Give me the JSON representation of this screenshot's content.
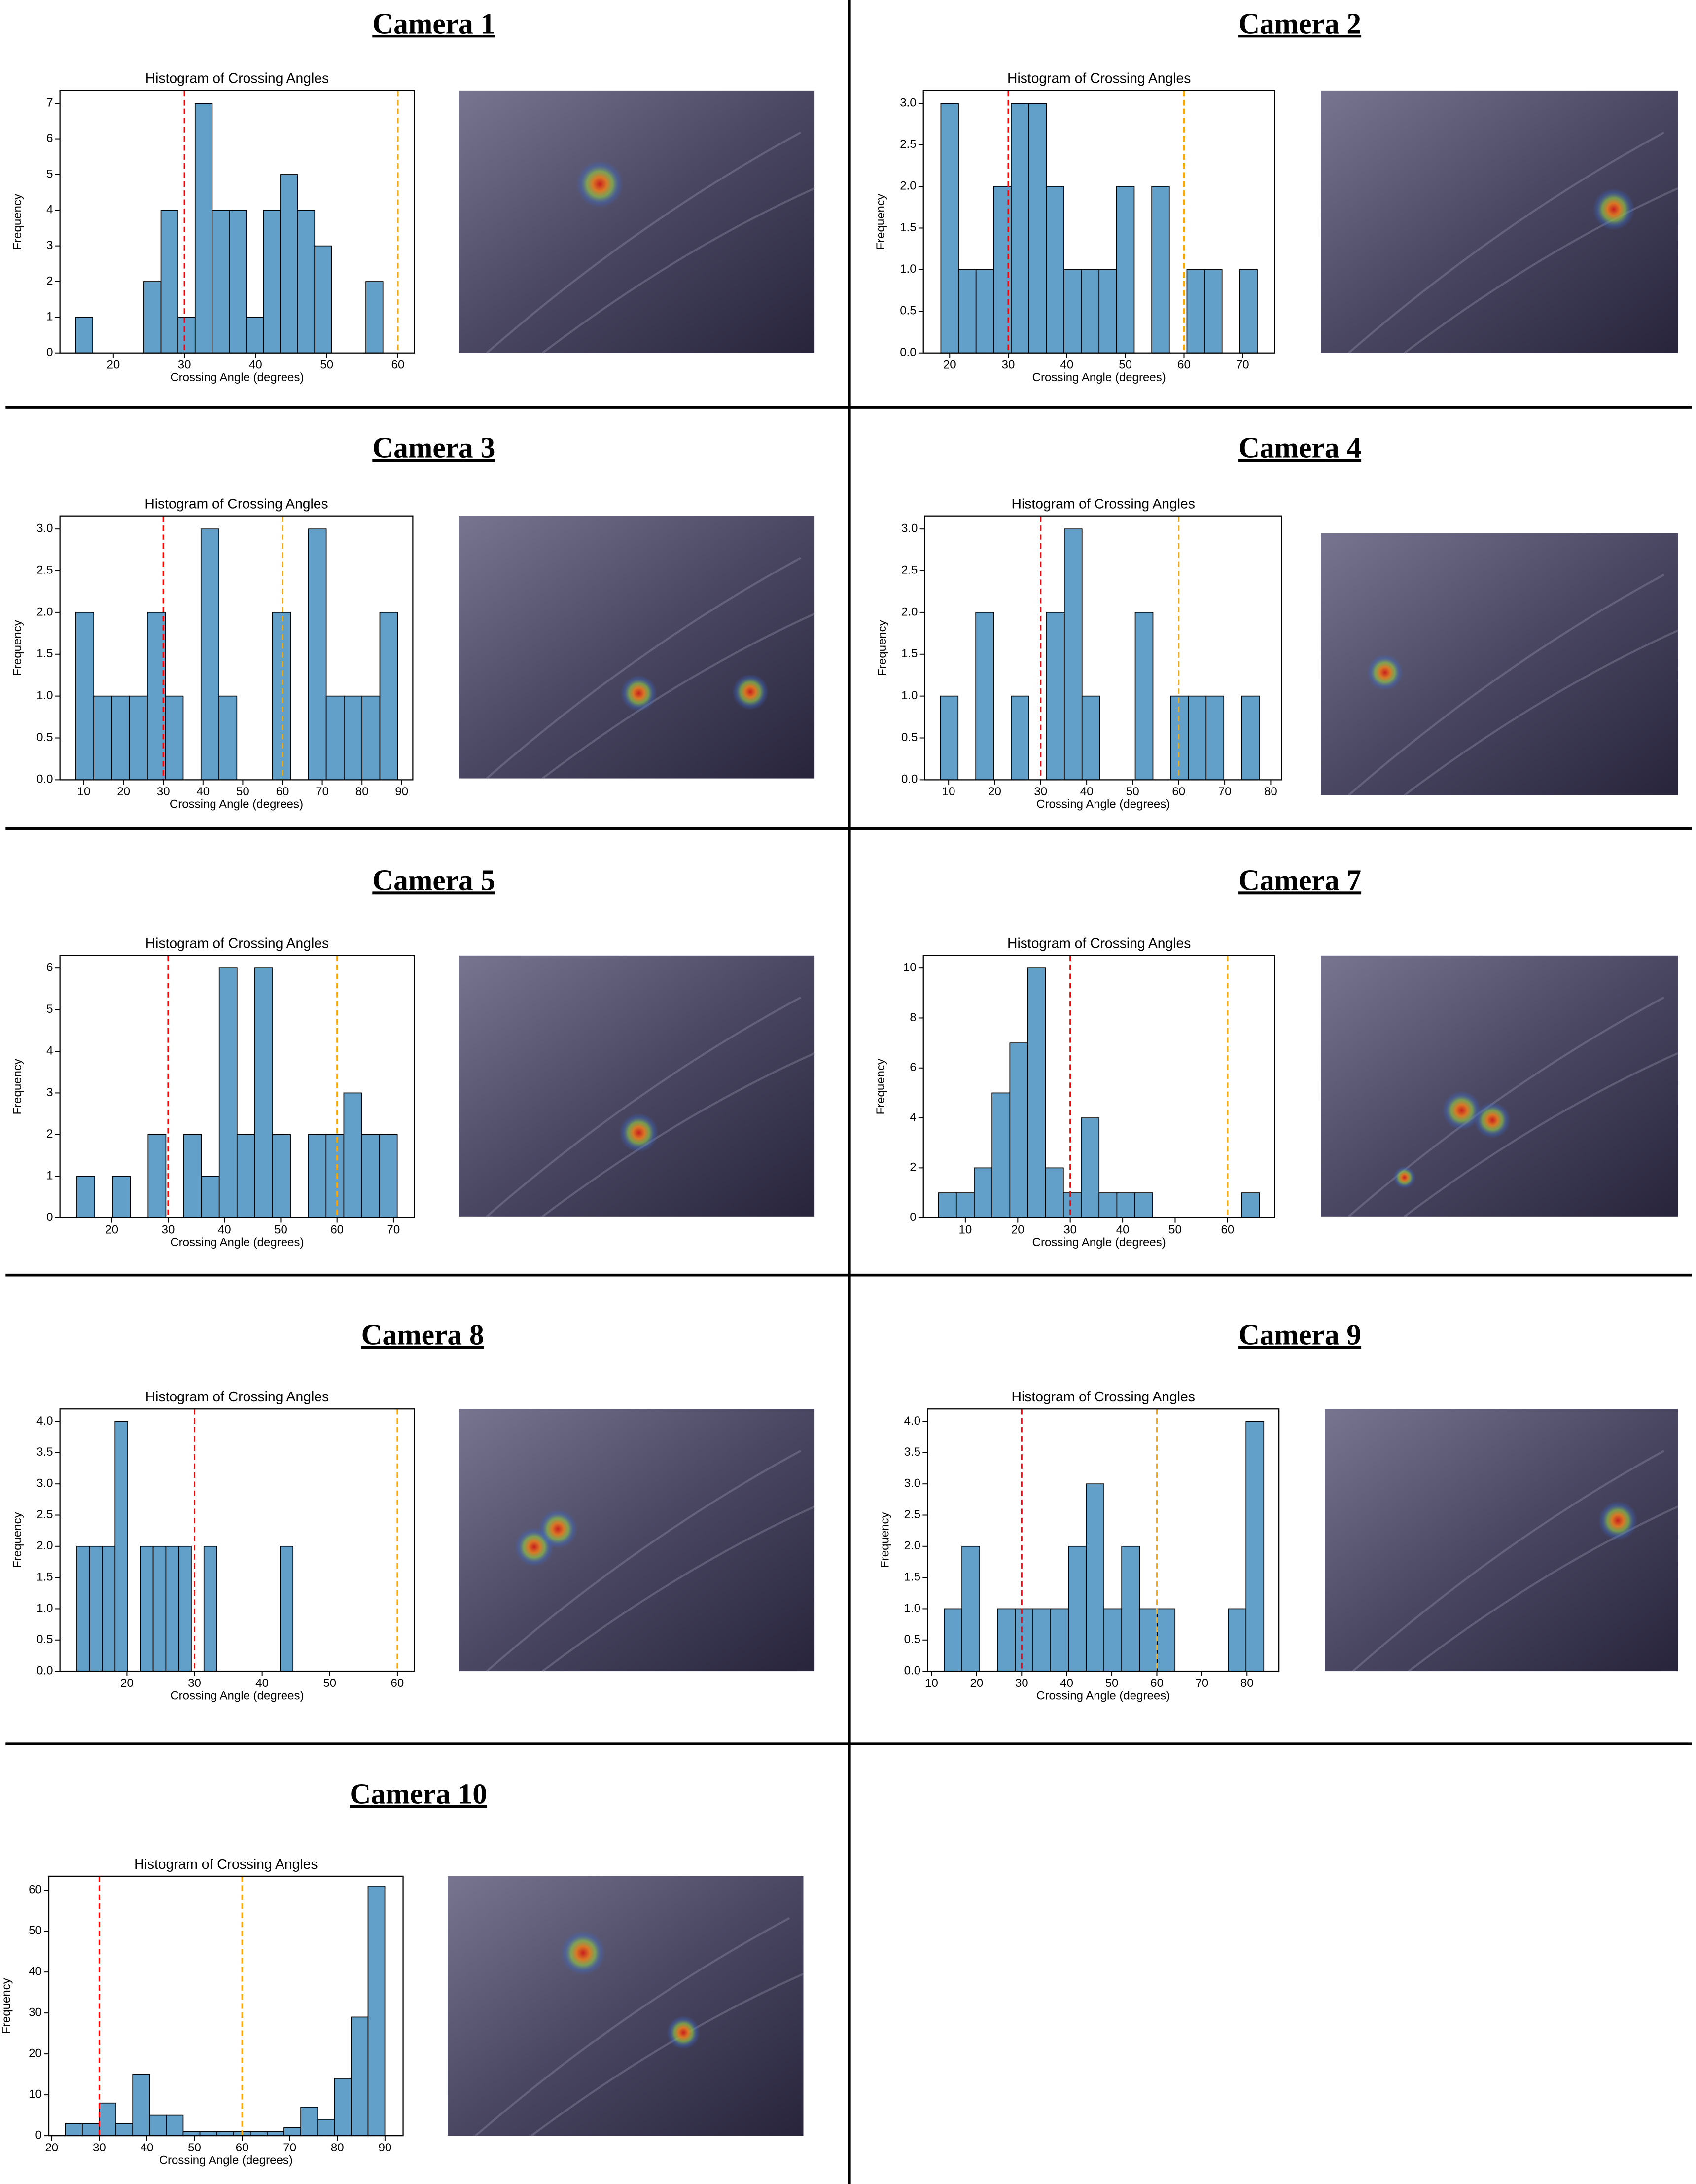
{
  "chart_data": [
    {
      "type": "histogram",
      "panel_title": "Camera 1",
      "title": "Histogram of Crossing Angles",
      "xlabel": "Crossing Angle (degrees)",
      "ylabel": "Frequency",
      "bins": [
        14.7,
        17.1,
        19.5,
        21.9,
        24.3,
        26.7,
        29.1,
        31.5,
        33.9,
        36.3,
        38.7,
        41.1,
        43.5,
        45.9,
        48.3,
        50.7,
        53.1,
        55.5,
        57.9
      ],
      "counts": [
        1,
        0,
        0,
        0,
        2,
        4,
        1,
        7,
        4,
        4,
        1,
        4,
        5,
        4,
        3,
        0,
        0,
        2
      ],
      "color": "#62a0ca",
      "edgecolor": "#000000",
      "xlim": [
        12.5,
        62.3
      ],
      "ylim": [
        0,
        7.35
      ],
      "xticks": [
        20,
        30,
        40,
        50,
        60
      ],
      "yticks": [
        0,
        1,
        2,
        3,
        4,
        5,
        6,
        7
      ],
      "vlines": [
        {
          "x": 30,
          "color": "#ff0000"
        },
        {
          "x": 60,
          "color": "#ffa500"
        }
      ]
    },
    {
      "type": "histogram",
      "panel_title": "Camera 2",
      "title": "Histogram of Crossing Angles",
      "xlabel": "Crossing Angle (degrees)",
      "ylabel": "Frequency",
      "bins": [
        18.5,
        21.5,
        24.5,
        27.5,
        30.5,
        33.5,
        36.5,
        39.5,
        42.5,
        45.5,
        48.5,
        51.5,
        54.5,
        57.5,
        60.5,
        63.5,
        66.5,
        69.5,
        72.5
      ],
      "counts": [
        3,
        1,
        1,
        2,
        3,
        3,
        2,
        1,
        1,
        1,
        2,
        0,
        2,
        0,
        1,
        1,
        0,
        1
      ],
      "color": "#62a0ca",
      "edgecolor": "#000000",
      "xlim": [
        15.5,
        75.5
      ],
      "ylim": [
        0,
        3.15
      ],
      "xticks": [
        20,
        30,
        40,
        50,
        60,
        70
      ],
      "yticks": [
        {
          "value": 0,
          "label": "0.0"
        },
        {
          "value": 0.5,
          "label": "0.5"
        },
        {
          "value": 1,
          "label": "1.0"
        },
        {
          "value": 1.5,
          "label": "1.5"
        },
        {
          "value": 2,
          "label": "2.0"
        },
        {
          "value": 2.5,
          "label": "2.5"
        },
        {
          "value": 3,
          "label": "3.0"
        }
      ],
      "vlines": [
        {
          "x": 30,
          "color": "#ff0000"
        },
        {
          "x": 60,
          "color": "#ffa500"
        }
      ]
    },
    {
      "type": "histogram",
      "panel_title": "Camera 3",
      "title": "Histogram of Crossing Angles",
      "xlabel": "Crossing Angle (degrees)",
      "ylabel": "Frequency",
      "bins": [
        8,
        12.5,
        17,
        21.5,
        26,
        30.5,
        35,
        39.5,
        44,
        48.5,
        53,
        57.5,
        62,
        66.5,
        71,
        75.5,
        80,
        84.5,
        89
      ],
      "counts": [
        2,
        1,
        1,
        1,
        2,
        1,
        0,
        3,
        1,
        0,
        0,
        2,
        0,
        3,
        1,
        1,
        1,
        2
      ],
      "color": "#62a0ca",
      "edgecolor": "#000000",
      "xlim": [
        4.0,
        92.8
      ],
      "ylim": [
        0,
        3.15
      ],
      "xticks": [
        10,
        20,
        30,
        40,
        50,
        60,
        70,
        80,
        90
      ],
      "yticks": [
        {
          "value": 0,
          "label": "0.0"
        },
        {
          "value": 0.5,
          "label": "0.5"
        },
        {
          "value": 1,
          "label": "1.0"
        },
        {
          "value": 1.5,
          "label": "1.5"
        },
        {
          "value": 2,
          "label": "2.0"
        },
        {
          "value": 2.5,
          "label": "2.5"
        },
        {
          "value": 3,
          "label": "3.0"
        }
      ],
      "vlines": [
        {
          "x": 30,
          "color": "#ff0000"
        },
        {
          "x": 60,
          "color": "#ffa500"
        }
      ]
    },
    {
      "type": "histogram",
      "panel_title": "Camera 4",
      "title": "Histogram of Crossing Angles",
      "xlabel": "Crossing Angle (degrees)",
      "ylabel": "Frequency",
      "bins": [
        8.2,
        12.05,
        15.9,
        19.75,
        23.6,
        27.45,
        31.3,
        35.15,
        39.0,
        42.85,
        46.7,
        50.55,
        54.4,
        58.25,
        62.1,
        65.95,
        69.8,
        73.65,
        77.5
      ],
      "counts": [
        1,
        0,
        2,
        0,
        1,
        0,
        2,
        3,
        1,
        0,
        0,
        2,
        0,
        1,
        1,
        1,
        0,
        1
      ],
      "color": "#62a0ca",
      "edgecolor": "#000000",
      "xlim": [
        4.8,
        82.4
      ],
      "ylim": [
        0,
        3.15
      ],
      "xticks": [
        10,
        20,
        30,
        40,
        50,
        60,
        70,
        80
      ],
      "yticks": [
        {
          "value": 0,
          "label": "0.0"
        },
        {
          "value": 0.5,
          "label": "0.5"
        },
        {
          "value": 1,
          "label": "1.0"
        },
        {
          "value": 1.5,
          "label": "1.5"
        },
        {
          "value": 2,
          "label": "2.0"
        },
        {
          "value": 2.5,
          "label": "2.5"
        },
        {
          "value": 3,
          "label": "3.0"
        }
      ],
      "vlines": [
        {
          "x": 30,
          "color": "#ff0000"
        },
        {
          "x": 60,
          "color": "#ffa500"
        }
      ]
    },
    {
      "type": "histogram",
      "panel_title": "Camera 5",
      "title": "Histogram of Crossing Angles",
      "xlabel": "Crossing Angle (degrees)",
      "ylabel": "Frequency",
      "bins": [
        13.8,
        16.96,
        20.12,
        23.28,
        26.44,
        29.6,
        32.76,
        35.92,
        39.08,
        42.24,
        45.4,
        48.56,
        51.72,
        54.88,
        58.04,
        61.2,
        64.36,
        67.52,
        70.68
      ],
      "counts": [
        1,
        0,
        1,
        0,
        2,
        0,
        2,
        1,
        6,
        2,
        6,
        2,
        0,
        2,
        2,
        3,
        2,
        2
      ],
      "color": "#62a0ca",
      "edgecolor": "#000000",
      "xlim": [
        10.8,
        73.7
      ],
      "ylim": [
        0,
        6.3
      ],
      "xticks": [
        20,
        30,
        40,
        50,
        60,
        70
      ],
      "yticks": [
        0,
        1,
        2,
        3,
        4,
        5,
        6
      ],
      "vlines": [
        {
          "x": 30,
          "color": "#ff0000"
        },
        {
          "x": 60,
          "color": "#ffa500"
        }
      ]
    },
    {
      "type": "histogram",
      "panel_title": "Camera 7",
      "title": "Histogram of Crossing Angles",
      "xlabel": "Crossing Angle (degrees)",
      "ylabel": "Frequency",
      "bins": [
        4.9,
        8.3,
        11.7,
        15.1,
        18.5,
        21.9,
        25.3,
        28.7,
        32.1,
        35.5,
        38.9,
        42.3,
        45.7,
        49.1,
        52.5,
        55.9,
        59.3,
        62.7,
        66.1
      ],
      "counts": [
        1,
        1,
        2,
        5,
        7,
        10,
        2,
        1,
        4,
        1,
        1,
        1,
        0,
        0,
        0,
        0,
        0,
        1
      ],
      "color": "#62a0ca",
      "edgecolor": "#000000",
      "xlim": [
        2.0,
        69.0
      ],
      "ylim": [
        0,
        10.5
      ],
      "xticks": [
        10,
        20,
        30,
        40,
        50,
        60
      ],
      "yticks": [
        0,
        2,
        4,
        6,
        8,
        10
      ],
      "vlines": [
        {
          "x": 30,
          "color": "#ff0000"
        },
        {
          "x": 60,
          "color": "#ffa500"
        }
      ]
    },
    {
      "type": "histogram",
      "panel_title": "Camera 8",
      "title": "Histogram of Crossing Angles",
      "xlabel": "Crossing Angle (degrees)",
      "ylabel": "Frequency",
      "bins": [
        12.6,
        14.48,
        16.36,
        18.24,
        20.12,
        22.0,
        23.88,
        25.76,
        27.64,
        29.52,
        31.4,
        33.28,
        35.16,
        37.04,
        38.92,
        40.8,
        42.68,
        44.56
      ],
      "counts": [
        2,
        2,
        2,
        4,
        0,
        2,
        2,
        2,
        2,
        0,
        2,
        0,
        0,
        0,
        0,
        0,
        2
      ],
      "color": "#62a0ca",
      "edgecolor": "#000000",
      "xlim": [
        10.1,
        62.5
      ],
      "ylim": [
        0,
        4.2
      ],
      "xticks": [
        20,
        30,
        40,
        50,
        60
      ],
      "yticks": [
        {
          "value": 0,
          "label": "0.0"
        },
        {
          "value": 0.5,
          "label": "0.5"
        },
        {
          "value": 1,
          "label": "1.0"
        },
        {
          "value": 1.5,
          "label": "1.5"
        },
        {
          "value": 2,
          "label": "2.0"
        },
        {
          "value": 2.5,
          "label": "2.5"
        },
        {
          "value": 3,
          "label": "3.0"
        },
        {
          "value": 3.5,
          "label": "3.5"
        },
        {
          "value": 4,
          "label": "4.0"
        }
      ],
      "vlines": [
        {
          "x": 30,
          "color": "#ff0000"
        },
        {
          "x": 60,
          "color": "#ffa500"
        }
      ]
    },
    {
      "type": "histogram",
      "panel_title": "Camera 9",
      "title": "Histogram of Crossing Angles",
      "xlabel": "Crossing Angle (degrees)",
      "ylabel": "Frequency",
      "bins": [
        12.8,
        16.74,
        20.68,
        24.62,
        28.56,
        32.5,
        36.44,
        40.38,
        44.32,
        48.26,
        52.2,
        56.14,
        60.08,
        64.02,
        67.96,
        71.9,
        75.84,
        79.78,
        83.72
      ],
      "counts": [
        1,
        2,
        0,
        1,
        1,
        1,
        1,
        2,
        3,
        1,
        2,
        1,
        1,
        0,
        0,
        0,
        1,
        4
      ],
      "color": "#62a0ca",
      "edgecolor": "#000000",
      "xlim": [
        9.1,
        87.1
      ],
      "ylim": [
        0,
        4.2
      ],
      "xticks": [
        10,
        20,
        30,
        40,
        50,
        60,
        70,
        80
      ],
      "yticks": [
        {
          "value": 0,
          "label": "0.0"
        },
        {
          "value": 0.5,
          "label": "0.5"
        },
        {
          "value": 1,
          "label": "1.0"
        },
        {
          "value": 1.5,
          "label": "1.5"
        },
        {
          "value": 2,
          "label": "2.0"
        },
        {
          "value": 2.5,
          "label": "2.5"
        },
        {
          "value": 3,
          "label": "3.0"
        },
        {
          "value": 3.5,
          "label": "3.5"
        },
        {
          "value": 4,
          "label": "4.0"
        }
      ],
      "vlines": [
        {
          "x": 30,
          "color": "#ff0000"
        },
        {
          "x": 60,
          "color": "#ffa500"
        }
      ]
    },
    {
      "type": "histogram",
      "panel_title": "Camera 10",
      "title": "Histogram of Crossing Angles",
      "xlabel": "Crossing Angle (degrees)",
      "ylabel": "Frequency",
      "bins": [
        22.9,
        26.43,
        29.96,
        33.49,
        37.02,
        40.55,
        44.08,
        47.61,
        51.14,
        54.67,
        58.2,
        61.73,
        65.26,
        68.79,
        72.32,
        75.85,
        79.38,
        82.91,
        86.44,
        89.97
      ],
      "counts": [
        3,
        3,
        8,
        3,
        15,
        5,
        5,
        1,
        1,
        1,
        1,
        1,
        1,
        2,
        7,
        4,
        14,
        29,
        61
      ],
      "color": "#62a0ca",
      "edgecolor": "#000000",
      "xlim": [
        19.4,
        93.8
      ],
      "ylim": [
        0,
        63.4
      ],
      "xticks": [
        20,
        30,
        40,
        50,
        60,
        70,
        80,
        90
      ],
      "yticks": [
        0,
        10,
        20,
        30,
        40,
        50,
        60
      ],
      "vlines": [
        {
          "x": 30,
          "color": "#ff0000"
        },
        {
          "x": 60,
          "color": "#ffa500"
        }
      ]
    }
  ]
}
